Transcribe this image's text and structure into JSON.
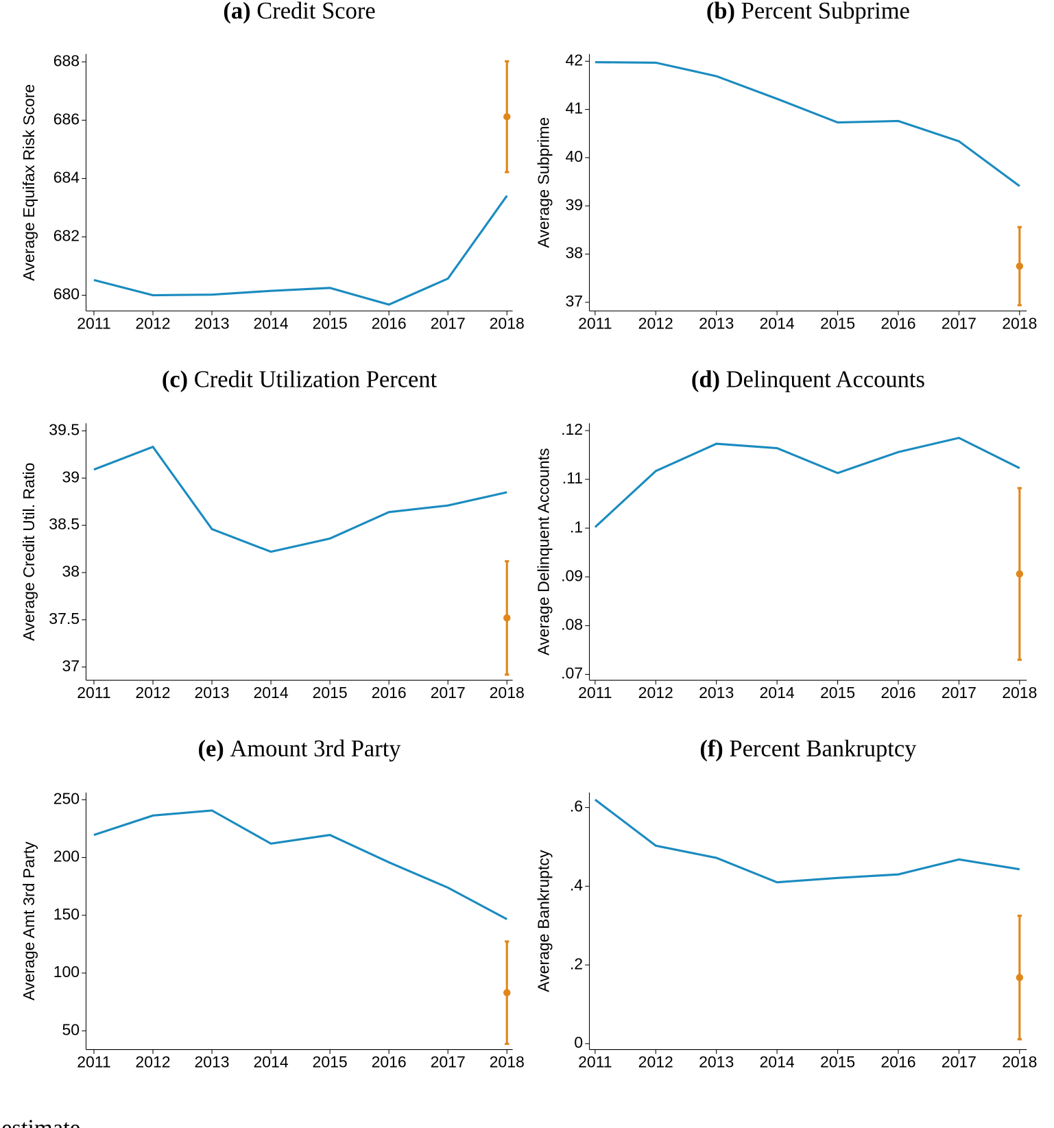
{
  "chart_data": [
    {
      "type": "line",
      "panel": "(a)",
      "title": "Credit Score",
      "ylabel": "Average Equifax Risk Score",
      "categories": [
        "2011",
        "2012",
        "2013",
        "2014",
        "2015",
        "2016",
        "2017",
        "2018"
      ],
      "values": [
        680.52,
        680.0,
        680.02,
        680.15,
        680.25,
        679.68,
        680.57,
        683.41
      ],
      "estimate": {
        "value": 686.12,
        "error": 1.9
      },
      "ylim": [
        679.46,
        688.27
      ],
      "yticks": [
        680,
        682,
        684,
        686,
        688
      ],
      "color": "#1a8bbf",
      "estimate_color": "#e0861a"
    },
    {
      "type": "line",
      "panel": "(b)",
      "title": "Percent Subprime",
      "ylabel": "Average Subprime",
      "categories": [
        "2011",
        "2012",
        "2013",
        "2014",
        "2015",
        "2016",
        "2017",
        "2018"
      ],
      "values": [
        41.98,
        41.97,
        41.69,
        41.22,
        40.73,
        40.76,
        40.34,
        39.41
      ],
      "estimate": {
        "value": 37.75,
        "error": 0.81
      },
      "ylim": [
        36.82,
        42.15
      ],
      "yticks": [
        37,
        38,
        39,
        40,
        41,
        42
      ],
      "color": "#1a8bbf",
      "estimate_color": "#e0861a"
    },
    {
      "type": "line",
      "panel": "(c)",
      "title": "Credit Utilization Percent",
      "ylabel": "Average Credit Util. Ratio",
      "categories": [
        "2011",
        "2012",
        "2013",
        "2014",
        "2015",
        "2016",
        "2017",
        "2018"
      ],
      "values": [
        39.09,
        39.33,
        38.46,
        38.22,
        38.36,
        38.64,
        38.71,
        38.85
      ],
      "estimate": {
        "value": 37.52,
        "error": 0.6
      },
      "ylim": [
        36.86,
        39.58
      ],
      "yticks": [
        37,
        37.5,
        38,
        38.5,
        39,
        39.5
      ],
      "color": "#1a8bbf",
      "estimate_color": "#e0861a"
    },
    {
      "type": "line",
      "panel": "(d)",
      "title": "Delinquent Accounts",
      "ylabel": "Average Delinquent Accounts",
      "categories": [
        "2011",
        "2012",
        "2013",
        "2014",
        "2015",
        "2016",
        "2017",
        "2018"
      ],
      "values": [
        0.1002,
        0.1117,
        0.1173,
        0.1164,
        0.1113,
        0.1156,
        0.1185,
        0.1123
      ],
      "estimate": {
        "value": 0.0906,
        "error": 0.0176
      },
      "ylim": [
        0.0688,
        0.1215
      ],
      "yticks": [
        {
          "value": 0.07,
          "label": ".07"
        },
        {
          "value": 0.08,
          "label": ".08"
        },
        {
          "value": 0.09,
          "label": ".09"
        },
        {
          "value": 0.1,
          "label": ".1"
        },
        {
          "value": 0.11,
          "label": ".11"
        },
        {
          "value": 0.12,
          "label": ".12"
        }
      ],
      "color": "#1a8bbf",
      "estimate_color": "#e0861a"
    },
    {
      "type": "line",
      "panel": "(e)",
      "title": "Amount 3rd Party",
      "ylabel": "Average Amt 3rd Party",
      "categories": [
        "2011",
        "2012",
        "2013",
        "2014",
        "2015",
        "2016",
        "2017",
        "2018"
      ],
      "values": [
        219.5,
        236.3,
        240.7,
        212.0,
        219.5,
        195.8,
        173.9,
        146.6
      ],
      "estimate": {
        "value": 83.0,
        "error": 44.3
      },
      "ylim": [
        33.8,
        256.2
      ],
      "yticks": [
        50,
        100,
        150,
        200,
        250
      ],
      "color": "#1a8bbf",
      "estimate_color": "#e0861a"
    },
    {
      "type": "line",
      "panel": "(f)",
      "title": "Percent Bankruptcy",
      "ylabel": "Average Bankruptcy",
      "categories": [
        "2011",
        "2012",
        "2013",
        "2014",
        "2015",
        "2016",
        "2017",
        "2018"
      ],
      "values": [
        0.62,
        0.503,
        0.472,
        0.41,
        0.421,
        0.43,
        0.468,
        0.443
      ],
      "estimate": {
        "value": 0.168,
        "error": 0.157
      },
      "ylim": [
        -0.015,
        0.638
      ],
      "yticks": [
        0,
        {
          "value": 0.2,
          "label": ".2"
        },
        {
          "value": 0.4,
          "label": ".4"
        },
        {
          "value": 0.6,
          "label": ".6"
        }
      ],
      "color": "#1a8bbf",
      "estimate_color": "#e0861a"
    }
  ],
  "footer": "estimate"
}
